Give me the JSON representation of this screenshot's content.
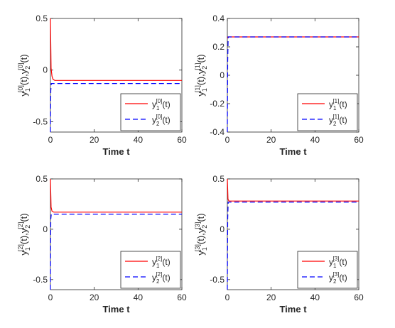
{
  "chart_data": [
    {
      "type": "line",
      "xlabel": "Time t",
      "ylabel": {
        "base": "y",
        "sub1": "1",
        "sub2": "2",
        "sup": "[0]",
        "arg": "(t)"
      },
      "xlim": [
        0,
        60
      ],
      "ylim": [
        -0.6,
        0.5
      ],
      "xticks": [
        "0",
        "20",
        "40",
        "60"
      ],
      "xtick_values": [
        0,
        20,
        40,
        60
      ],
      "yticks": [
        "0.5",
        "0",
        "-0.5"
      ],
      "ytick_values": [
        0.5,
        0,
        -0.5
      ],
      "legend_position": "bottom-right",
      "series": [
        {
          "name": {
            "base": "y",
            "sub": "1",
            "sup": "[0]",
            "arg": "(t)"
          },
          "color": "#ff0000",
          "style": "solid",
          "x": [
            0,
            0.3,
            0.7,
            1.2,
            2,
            4,
            60
          ],
          "y": [
            0.5,
            0.02,
            -0.06,
            -0.09,
            -0.1,
            -0.1,
            -0.1
          ]
        },
        {
          "name": {
            "base": "y",
            "sub": "2",
            "sup": "[0]",
            "arg": "(t)"
          },
          "color": "#0000ff",
          "style": "dashed",
          "x": [
            0,
            0.15,
            0.4,
            60
          ],
          "y": [
            -0.6,
            -0.2,
            -0.13,
            -0.13
          ]
        }
      ]
    },
    {
      "type": "line",
      "xlabel": "Time t",
      "ylabel": {
        "base": "y",
        "sub1": "1",
        "sub2": "2",
        "sup": "[1]",
        "arg": "(t)"
      },
      "xlim": [
        0,
        60
      ],
      "ylim": [
        -0.4,
        0.4
      ],
      "xticks": [
        "0",
        "20",
        "40",
        "60"
      ],
      "xtick_values": [
        0,
        20,
        40,
        60
      ],
      "yticks": [
        "0.4",
        "0.2",
        "0",
        "-0.2",
        "-0.4"
      ],
      "ytick_values": [
        0.4,
        0.2,
        0,
        -0.2,
        -0.4
      ],
      "legend_position": "bottom-right",
      "series": [
        {
          "name": {
            "base": "y",
            "sub": "1",
            "sup": "[1]",
            "arg": "(t)"
          },
          "color": "#ff0000",
          "style": "solid",
          "x": [
            0,
            0.3,
            60
          ],
          "y": [
            0.26,
            0.27,
            0.27
          ]
        },
        {
          "name": {
            "base": "y",
            "sub": "2",
            "sup": "[1]",
            "arg": "(t)"
          },
          "color": "#0000ff",
          "style": "dashed",
          "x": [
            0,
            0.15,
            0.4,
            60
          ],
          "y": [
            -0.4,
            0.1,
            0.27,
            0.27
          ]
        }
      ]
    },
    {
      "type": "line",
      "xlabel": "Time t",
      "ylabel": {
        "base": "y",
        "sub1": "1",
        "sub2": "2",
        "sup": "[2]",
        "arg": "(t)"
      },
      "xlim": [
        0,
        60
      ],
      "ylim": [
        -0.6,
        0.5
      ],
      "xticks": [
        "0",
        "20",
        "40",
        "60"
      ],
      "xtick_values": [
        0,
        20,
        40,
        60
      ],
      "yticks": [
        "0.5",
        "0",
        "-0.5"
      ],
      "ytick_values": [
        0.5,
        0,
        -0.5
      ],
      "legend_position": "bottom-right",
      "series": [
        {
          "name": {
            "base": "y",
            "sub": "1",
            "sup": "[2]",
            "arg": "(t)"
          },
          "color": "#ff0000",
          "style": "solid",
          "x": [
            0,
            0.3,
            0.7,
            1.5,
            60
          ],
          "y": [
            0.5,
            0.22,
            0.18,
            0.17,
            0.17
          ]
        },
        {
          "name": {
            "base": "y",
            "sub": "2",
            "sup": "[2]",
            "arg": "(t)"
          },
          "color": "#0000ff",
          "style": "dashed",
          "x": [
            0,
            0.15,
            0.4,
            60
          ],
          "y": [
            -0.6,
            0.1,
            0.15,
            0.15
          ]
        }
      ]
    },
    {
      "type": "line",
      "xlabel": "Time t",
      "ylabel": {
        "base": "y",
        "sub1": "1",
        "sub2": "2",
        "sup": "[3]",
        "arg": "(t)"
      },
      "xlim": [
        0,
        60
      ],
      "ylim": [
        -0.6,
        0.5
      ],
      "xticks": [
        "0",
        "20",
        "40",
        "60"
      ],
      "xtick_values": [
        0,
        20,
        40,
        60
      ],
      "yticks": [
        "0.5",
        "0",
        "-0.5"
      ],
      "ytick_values": [
        0.5,
        0,
        -0.5
      ],
      "legend_position": "bottom-right",
      "series": [
        {
          "name": {
            "base": "y",
            "sub": "1",
            "sup": "[3]",
            "arg": "(t)"
          },
          "color": "#ff0000",
          "style": "solid",
          "x": [
            0,
            0.3,
            0.7,
            60
          ],
          "y": [
            0.5,
            0.3,
            0.28,
            0.28
          ]
        },
        {
          "name": {
            "base": "y",
            "sub": "2",
            "sup": "[3]",
            "arg": "(t)"
          },
          "color": "#0000ff",
          "style": "dashed",
          "x": [
            0,
            0.15,
            0.4,
            60
          ],
          "y": [
            -0.6,
            0.1,
            0.27,
            0.27
          ]
        }
      ]
    }
  ]
}
